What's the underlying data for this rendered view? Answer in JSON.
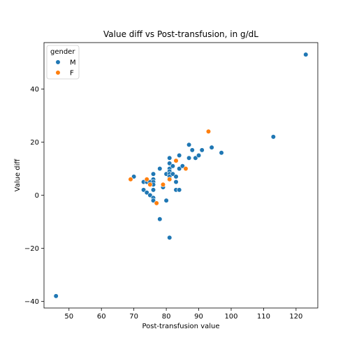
{
  "chart_data": {
    "type": "scatter",
    "title": "Value diff vs Post-transfusion, in g/dL",
    "xlabel": "Post-transfusion value",
    "ylabel": "Value diff",
    "xlim": [
      42.3,
      126.7
    ],
    "ylim": [
      -42.5,
      57.5
    ],
    "xticks": [
      50,
      60,
      70,
      80,
      90,
      100,
      110,
      120
    ],
    "yticks": [
      -40,
      -20,
      0,
      20,
      40
    ],
    "grid": false,
    "legend": {
      "title": "gender",
      "placement": "top-left",
      "entries": [
        {
          "name": "M",
          "color": "#1f77b4"
        },
        {
          "name": "F",
          "color": "#ff7f0e"
        }
      ]
    },
    "series": [
      {
        "name": "M",
        "color": "#1f77b4",
        "points": [
          [
            46,
            -38
          ],
          [
            70,
            7
          ],
          [
            73,
            2
          ],
          [
            73,
            5
          ],
          [
            74,
            5
          ],
          [
            74,
            1
          ],
          [
            75,
            0
          ],
          [
            75,
            5
          ],
          [
            76,
            8
          ],
          [
            76,
            6
          ],
          [
            76,
            5
          ],
          [
            76,
            4
          ],
          [
            76,
            2
          ],
          [
            76,
            -1
          ],
          [
            76,
            -2
          ],
          [
            78,
            10
          ],
          [
            78,
            -9
          ],
          [
            79,
            3
          ],
          [
            80,
            8
          ],
          [
            80,
            -2
          ],
          [
            81,
            14
          ],
          [
            81,
            12
          ],
          [
            81,
            10
          ],
          [
            81,
            9
          ],
          [
            81,
            8
          ],
          [
            81,
            7
          ],
          [
            81,
            -16
          ],
          [
            82,
            11
          ],
          [
            82,
            8
          ],
          [
            83,
            7
          ],
          [
            83,
            5
          ],
          [
            83,
            2
          ],
          [
            84,
            15
          ],
          [
            84,
            10
          ],
          [
            84,
            2
          ],
          [
            85,
            11
          ],
          [
            87,
            19
          ],
          [
            87,
            14
          ],
          [
            88,
            17
          ],
          [
            89,
            14
          ],
          [
            90,
            15
          ],
          [
            91,
            17
          ],
          [
            94,
            18
          ],
          [
            97,
            16
          ],
          [
            113,
            22
          ],
          [
            123,
            53
          ]
        ]
      },
      {
        "name": "F",
        "color": "#ff7f0e",
        "points": [
          [
            69,
            6
          ],
          [
            74,
            6
          ],
          [
            75,
            4
          ],
          [
            77,
            -3
          ],
          [
            79,
            4
          ],
          [
            81,
            6
          ],
          [
            83,
            13
          ],
          [
            86,
            10
          ],
          [
            93,
            24
          ]
        ]
      }
    ]
  }
}
